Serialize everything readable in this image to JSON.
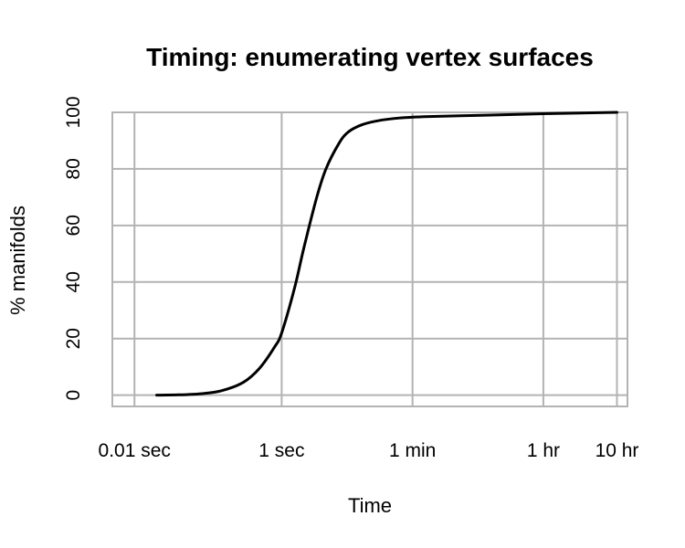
{
  "chart_data": {
    "type": "line",
    "title": "Timing: enumerating vertex surfaces",
    "xlabel": "Time",
    "ylabel": "% manifolds",
    "x_scale": "log",
    "x_unit": "seconds",
    "x_ticks": [
      {
        "value": 0.01,
        "label": "0.01 sec"
      },
      {
        "value": 1,
        "label": "1 sec"
      },
      {
        "value": 60,
        "label": "1 min"
      },
      {
        "value": 3600,
        "label": "1 hr"
      },
      {
        "value": 36000,
        "label": "10 hr"
      }
    ],
    "y_ticks": [
      {
        "value": 0,
        "label": "0"
      },
      {
        "value": 20,
        "label": "20"
      },
      {
        "value": 40,
        "label": "40"
      },
      {
        "value": 60,
        "label": "60"
      },
      {
        "value": 80,
        "label": "80"
      },
      {
        "value": 100,
        "label": "100"
      }
    ],
    "xlim": [
      0.005,
      50000
    ],
    "ylim": [
      -4,
      100
    ],
    "grid": true,
    "series": [
      {
        "color": "#000000",
        "x": [
          0.02,
          0.04,
          0.08,
          0.15,
          0.3,
          0.5,
          0.8,
          1.0,
          1.5,
          2.0,
          3.0,
          4.0,
          6.0,
          8.0,
          12.0,
          20.0,
          40.0,
          100.0,
          600.0,
          3600.0,
          36000.0
        ],
        "y": [
          0,
          0.1,
          0.5,
          1.5,
          4.5,
          9.5,
          17,
          22,
          38,
          52,
          70,
          80,
          89,
          93,
          95.5,
          97,
          98,
          98.5,
          99,
          99.5,
          100
        ]
      }
    ]
  }
}
